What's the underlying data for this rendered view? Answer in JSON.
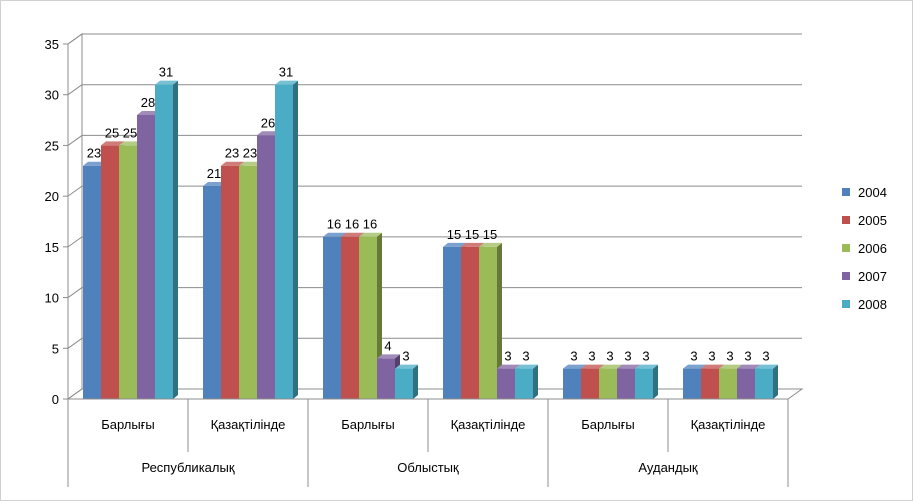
{
  "chart_data": {
    "type": "bar",
    "title": "",
    "xlabel": "",
    "ylabel": "",
    "ylim": [
      0,
      35
    ],
    "yticks": [
      0,
      5,
      10,
      15,
      20,
      25,
      30,
      35
    ],
    "grid": true,
    "legend_position": "right",
    "style": "3d-clustered-column",
    "groups": [
      {
        "label": "Республикалық",
        "categories": [
          "Барлығы",
          "Қазақтілінде"
        ]
      },
      {
        "label": "Облыстық",
        "categories": [
          "Барлығы",
          "Қазақтілінде"
        ]
      },
      {
        "label": "Аудандық",
        "categories": [
          "Барлығы",
          "Қазақтілінде"
        ]
      }
    ],
    "categories": [
      "Барлығы",
      "Қазақтілінде",
      "Барлығы",
      "Қазақтілінде",
      "Барлығы",
      "Қазақтілінде"
    ],
    "series": [
      {
        "name": "2004",
        "color": "#4F81BD",
        "values": [
          23,
          21,
          16,
          15,
          3,
          3
        ]
      },
      {
        "name": "2005",
        "color": "#C0504D",
        "values": [
          25,
          23,
          16,
          15,
          3,
          3
        ]
      },
      {
        "name": "2006",
        "color": "#9BBB59",
        "values": [
          25,
          23,
          16,
          15,
          3,
          3
        ]
      },
      {
        "name": "2007",
        "color": "#8064A2",
        "values": [
          28,
          26,
          4,
          3,
          3,
          3
        ]
      },
      {
        "name": "2008",
        "color": "#4BACC6",
        "values": [
          31,
          31,
          3,
          3,
          3,
          3
        ]
      }
    ]
  }
}
